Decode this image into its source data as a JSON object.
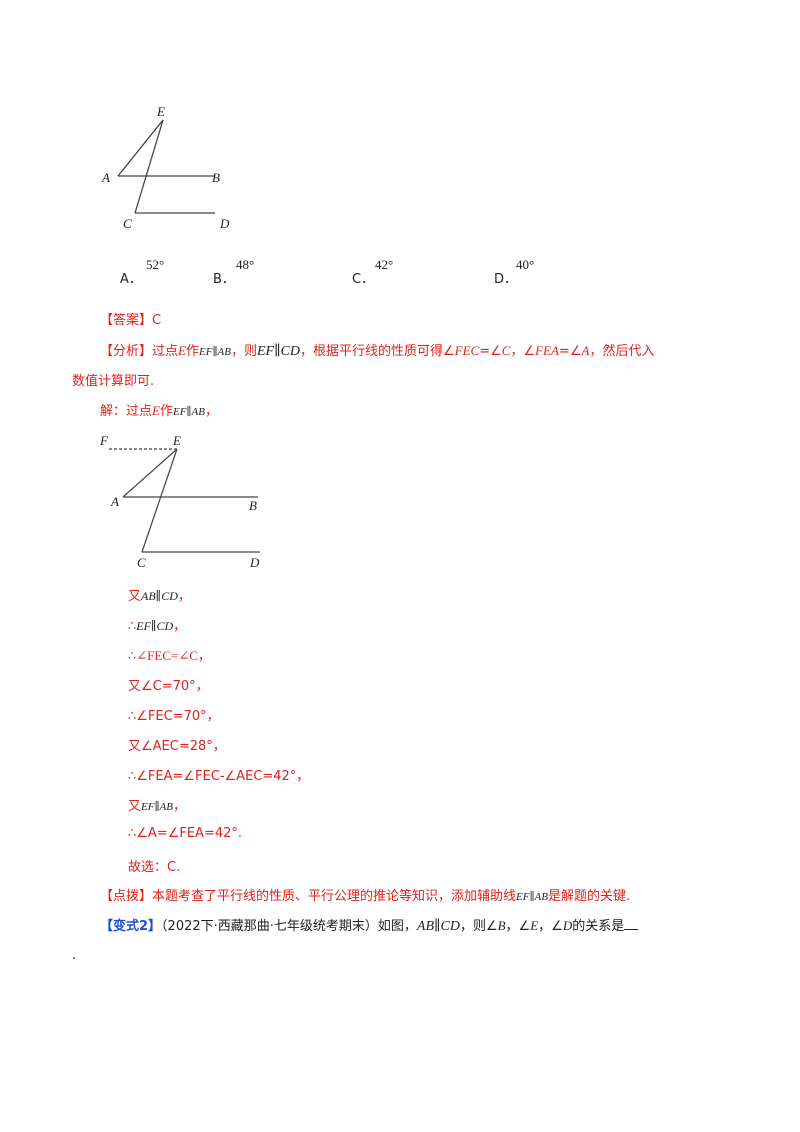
{
  "figure1": {
    "E": "E",
    "A": "A",
    "B": "B",
    "C": "C",
    "D": "D"
  },
  "options": [
    {
      "letter": "A．",
      "value": "52°"
    },
    {
      "letter": "B．",
      "value": "48°"
    },
    {
      "letter": "C．",
      "value": "42°"
    },
    {
      "letter": "D．",
      "value": "40°"
    }
  ],
  "answer": {
    "tag": "【答案】",
    "value": "C"
  },
  "analysis": {
    "tag": "【分析】",
    "p1": "过点",
    "E": "E",
    "p2": "作",
    "m1": "EF∥AB",
    "p3": "，则",
    "m2": "EF∥CD",
    "p4": "，根据平行线的性质可得∠",
    "fec": "FEC",
    "p5": "=∠",
    "c": "C",
    "p6": "，∠",
    "fea": "FEA",
    "p7": "=∠",
    "a": "A",
    "p8": "，然后代入",
    "line2": "数值计算即可."
  },
  "solution": {
    "intro1": "解：过点",
    "E": "E",
    "intro2": "作",
    "m": "EF∥AB",
    "intro3": "，"
  },
  "figure2": {
    "F": "F",
    "E": "E",
    "A": "A",
    "B": "B",
    "C": "C",
    "D": "D"
  },
  "steps": {
    "s1_pre": "又",
    "s1_m": "AB∥CD",
    "s1_post": "，",
    "s2_pre": "∴",
    "s2_m": "EF∥CD",
    "s2_post": "，",
    "s3": "∴∠FEC=∠C，",
    "s4": "又∠C=70°，",
    "s5": "∴∠FEC=70°，",
    "s6": "又∠AEC=28°，",
    "s7": "∴∠FEA=∠FEC-∠AEC=42°，",
    "s8_pre": "又",
    "s8_m": "EF∥AB",
    "s8_post": "，",
    "s9": "∴∠A=∠FEA=42°.",
    "s10": "故选：C."
  },
  "tip": {
    "tag": "【点拨】",
    "t1": "本题考查了平行线的性质、平行公理的推论等知识，添加辅助线",
    "m": "EF∥AB",
    "t2": "是解题的关键."
  },
  "variant": {
    "tag": "【变式2】",
    "src": "（2022下·西藏那曲·七年级统考期末）如图，",
    "m": "AB∥CD",
    "t1": "，则∠",
    "b": "B",
    "t2": "，∠",
    "e": "E",
    "t3": "，∠",
    "d": "D",
    "t4": "的关系是",
    "dot": "."
  }
}
